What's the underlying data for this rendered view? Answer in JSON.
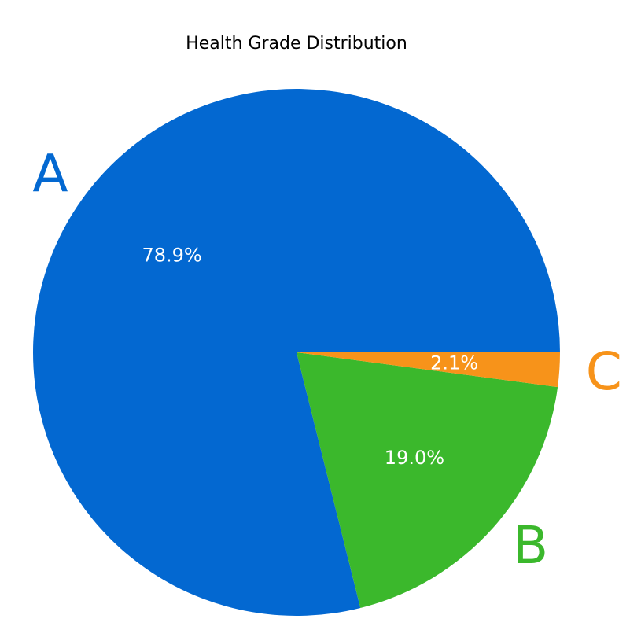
{
  "chart_data": {
    "type": "pie",
    "title": "Health Grade Distribution",
    "categories": [
      "A",
      "B",
      "C"
    ],
    "values": [
      78.9,
      19.0,
      2.1
    ],
    "value_labels": [
      "78.9%",
      "19.0%",
      "2.1%"
    ],
    "colors": [
      "#0368D1",
      "#3BB82C",
      "#F7931A"
    ],
    "start_angle_deg": 0,
    "direction": "counterclockwise",
    "legend": "none"
  }
}
